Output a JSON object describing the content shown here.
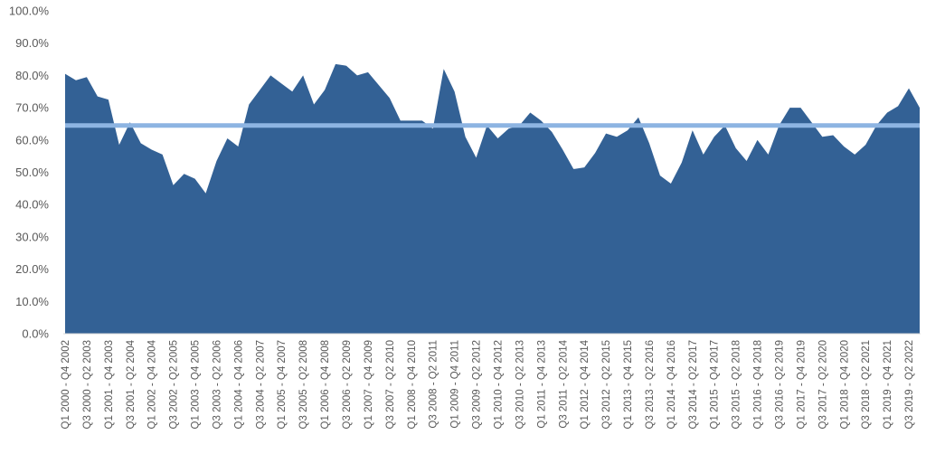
{
  "chart_data": {
    "type": "area",
    "title": "",
    "xlabel": "",
    "ylabel": "",
    "ylim": [
      0,
      100
    ],
    "grid": false,
    "legend": "none",
    "y_ticks": [
      "0.0%",
      "10.0%",
      "20.0%",
      "30.0%",
      "40.0%",
      "50.0%",
      "60.0%",
      "70.0%",
      "80.0%",
      "90.0%",
      "100.0%"
    ],
    "x_tick_labels": [
      "Q1 2000 - Q4 2002",
      "Q3 2000 - Q2 2003",
      "Q1 2001 - Q4 2003",
      "Q3 2001 - Q2 2004",
      "Q1 2002 - Q4 2004",
      "Q3 2002 - Q2 2005",
      "Q1 2003 - Q4 2005",
      "Q3 2003 - Q2 2006",
      "Q1 2004 - Q4 2006",
      "Q3 2004 - Q2 2007",
      "Q1 2005 - Q4 2007",
      "Q3 2005 - Q2 2008",
      "Q1 2006 - Q4 2008",
      "Q3 2006 - Q2 2009",
      "Q1 2007 - Q4 2009",
      "Q3 2007 - Q2 2010",
      "Q1 2008 - Q4 2010",
      "Q3 2008 - Q2 2011",
      "Q1 2009 - Q4 2011",
      "Q3 2009 - Q2 2012",
      "Q1 2010 - Q4 2012",
      "Q3 2010 - Q2 2013",
      "Q1 2011 - Q4 2013",
      "Q3 2011 - Q2 2014",
      "Q1 2012 - Q4 2014",
      "Q3 2012 - Q2 2015",
      "Q1 2013 - Q4 2015",
      "Q3 2013 - Q2 2016",
      "Q1 2014 - Q4 2016",
      "Q3 2014 - Q2 2017",
      "Q1 2015 - Q4 2017",
      "Q3 2015 - Q2 2018",
      "Q1 2016 - Q4 2018",
      "Q3 2016 - Q2 2019",
      "Q1 2017 - Q4 2019",
      "Q3 2017 - Q2 2020",
      "Q1 2018 - Q4 2020",
      "Q3 2018 - Q2 2021",
      "Q1 2019 - Q4 2021",
      "Q3 2019 - Q2 2022"
    ],
    "series": [
      {
        "type": "area",
        "color": "#336195",
        "values": [
          80.5,
          78.5,
          79.5,
          73.5,
          72.5,
          58.5,
          65.5,
          59,
          57,
          55.5,
          46,
          49.5,
          48,
          43.5,
          53.5,
          60.5,
          58,
          71,
          75.5,
          80,
          77.5,
          75,
          80,
          71,
          75.5,
          83.5,
          83,
          80,
          81,
          77,
          73,
          66,
          66,
          66,
          63.5,
          82,
          75,
          61,
          54.5,
          64.5,
          60.5,
          63.5,
          64.5,
          68.5,
          66,
          62.5,
          57,
          51,
          51.5,
          56,
          62,
          61,
          63,
          67,
          59,
          49,
          46.5,
          53,
          63,
          55.5,
          61,
          64.5,
          57.5,
          53.5,
          60,
          55.5,
          64.5,
          70,
          70,
          65.5,
          61,
          61.5,
          58,
          55.5,
          58.5,
          64.5,
          68.5,
          70.5,
          76,
          70
        ]
      },
      {
        "type": "line",
        "color": "#8DB4E2",
        "values": [
          64.5,
          64.5
        ]
      }
    ]
  }
}
